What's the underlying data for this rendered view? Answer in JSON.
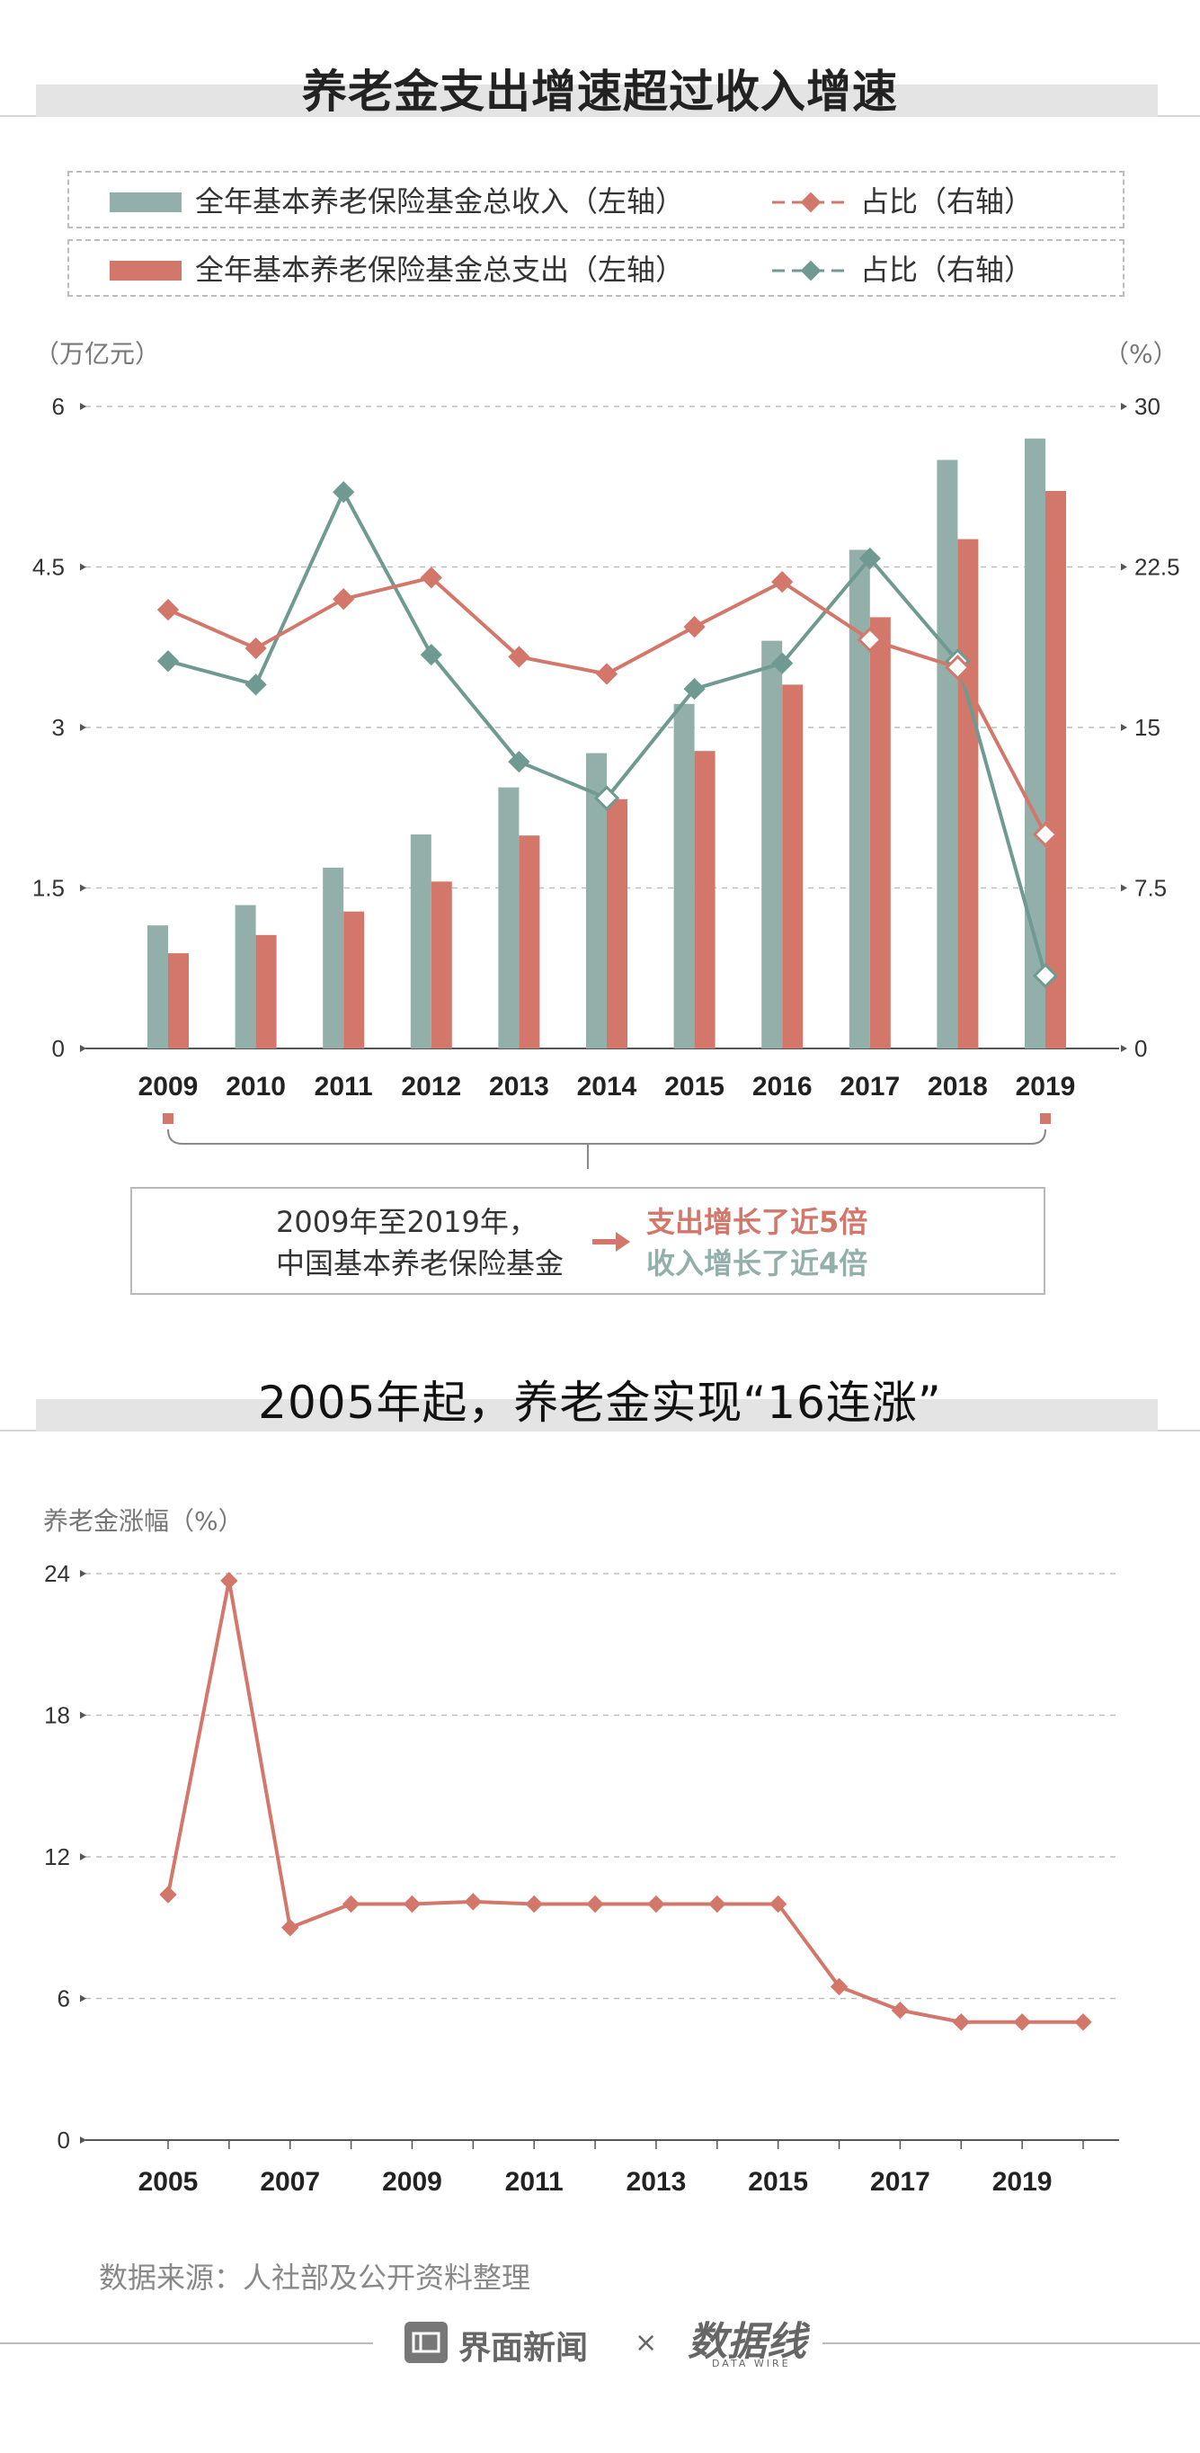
{
  "section1": {
    "title": "养老金支出增速超过收入增速",
    "legend": {
      "income_label": "全年基本养老保险基金总收入（左轴）",
      "income_ratio_label": "占比（右轴）",
      "expense_label": "全年基本养老保险基金总支出（左轴）",
      "expense_ratio_label": "占比（右轴）"
    },
    "left_unit": "（万亿元）",
    "right_unit": "（%）",
    "summary": {
      "line1": "2009年至2019年，",
      "line2": "中国基本养老保险基金",
      "expense_text": "支出增长了近5倍",
      "income_text": "收入增长了近4倍"
    }
  },
  "section2": {
    "title": "2005年起，养老金实现“16连涨”",
    "y_unit": "养老金涨幅（%）"
  },
  "source": "数据来源：人社部及公开资料整理",
  "footer": {
    "brand": "界面新闻",
    "times": "×",
    "partner": "数据线",
    "partner_sub": "DATA WIRE"
  },
  "colors": {
    "income": "#93afa9",
    "expense": "#d3776b",
    "income_line": "#6f9a91",
    "expense_line": "#d3776b"
  },
  "chart_data": [
    {
      "type": "bar",
      "title": "养老金支出增速超过收入增速",
      "categories": [
        "2009",
        "2010",
        "2011",
        "2012",
        "2013",
        "2014",
        "2015",
        "2016",
        "2017",
        "2018",
        "2019"
      ],
      "series": [
        {
          "name": "全年基本养老保险基金总收入（左轴）",
          "axis": "left",
          "values": [
            1.15,
            1.34,
            1.69,
            2.0,
            2.44,
            2.76,
            3.22,
            3.81,
            4.66,
            5.5,
            5.7
          ]
        },
        {
          "name": "全年基本养老保险基金总支出（左轴）",
          "axis": "left",
          "values": [
            0.89,
            1.06,
            1.28,
            1.56,
            1.99,
            2.33,
            2.78,
            3.4,
            4.03,
            4.76,
            5.21
          ]
        },
        {
          "name": "占比（右轴）",
          "type": "line",
          "axis": "right",
          "of": "expense",
          "values": [
            20.5,
            18.7,
            21.0,
            22.0,
            18.3,
            17.5,
            19.7,
            21.8,
            19.1,
            17.8,
            10.0
          ]
        },
        {
          "name": "占比（右轴）",
          "type": "line",
          "axis": "right",
          "of": "income",
          "values": [
            18.1,
            17.0,
            26.0,
            18.4,
            13.4,
            11.7,
            16.8,
            18.0,
            22.9,
            18.1,
            3.4
          ]
        }
      ],
      "ylim_left": [
        0,
        6
      ],
      "ylim_right": [
        0,
        30
      ],
      "yticks_left": [
        "0",
        "1.5",
        "3",
        "4.5",
        "6"
      ],
      "yticks_right": [
        "0",
        "7.5",
        "15",
        "22.5",
        "30"
      ],
      "ylabel_left": "（万亿元）",
      "ylabel_right": "（%）",
      "grid": true
    },
    {
      "type": "line",
      "title": "2005年起，养老金实现“16连涨”",
      "x": [
        2005,
        2006,
        2007,
        2008,
        2009,
        2010,
        2011,
        2012,
        2013,
        2014,
        2015,
        2016,
        2017,
        2018,
        2019,
        2020
      ],
      "values": [
        10.4,
        23.7,
        9.0,
        10.0,
        10.0,
        10.1,
        10.0,
        10.0,
        10.0,
        10.0,
        10.0,
        6.5,
        5.5,
        5.0,
        5.0,
        5.0
      ],
      "xtick_labels": [
        "2005",
        "2007",
        "2009",
        "2011",
        "2013",
        "2015",
        "2017",
        "2019"
      ],
      "yticks": [
        "0",
        "6",
        "12",
        "18",
        "24"
      ],
      "ylim": [
        0,
        24
      ],
      "ylabel": "养老金涨幅（%）",
      "grid": true
    }
  ]
}
